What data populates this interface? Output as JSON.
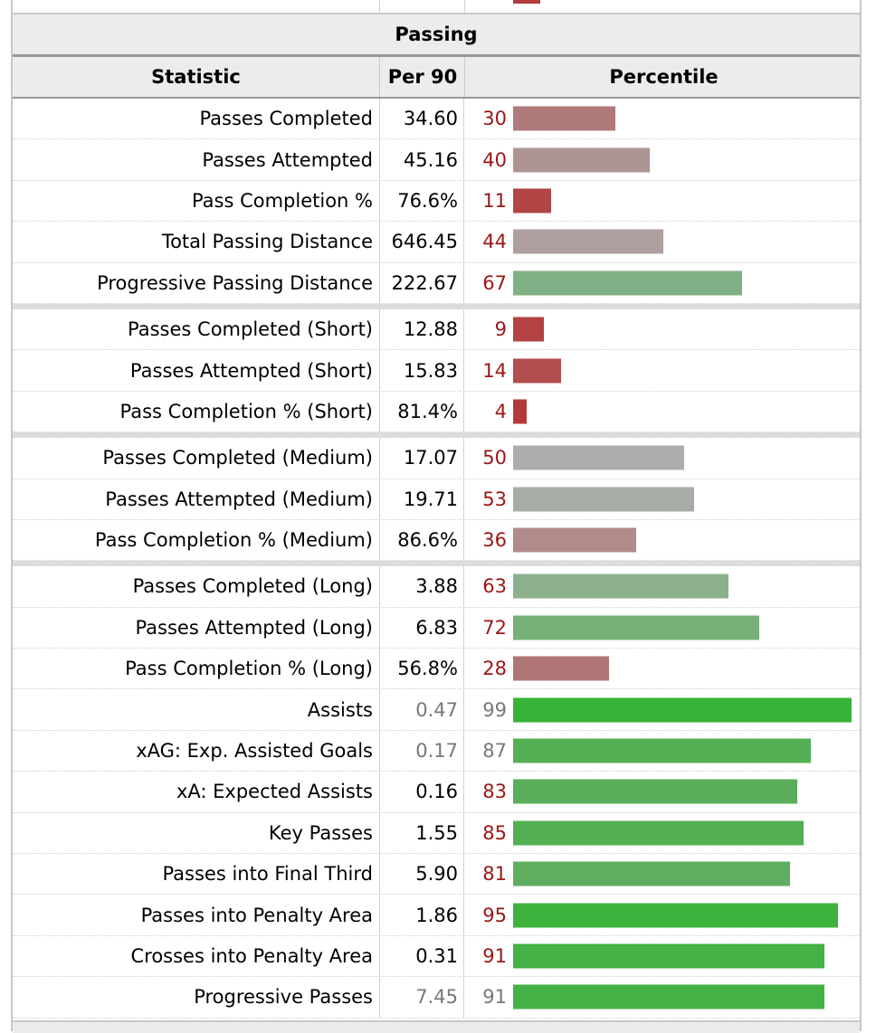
{
  "section_title": "Passing",
  "headers": {
    "statistic": "Statistic",
    "per90": "Per 90",
    "percentile": "Percentile"
  },
  "colors": {
    "low": "#b24444",
    "mid": "#b3a0a0",
    "neutral": "#aaaaaa",
    "high_muted": "#80b080",
    "high": "#3aaf3a"
  },
  "rows": [
    {
      "stat": "Passes Completed",
      "per90": "34.60",
      "percentile": 30,
      "color": "#b07a7a"
    },
    {
      "stat": "Passes Attempted",
      "per90": "45.16",
      "percentile": 40,
      "color": "#af9494"
    },
    {
      "stat": "Pass Completion %",
      "per90": "76.6%",
      "percentile": 11,
      "color": "#b24545"
    },
    {
      "stat": "Total Passing Distance",
      "per90": "646.45",
      "percentile": 44,
      "color": "#b09f9f"
    },
    {
      "stat": "Progressive Passing Distance",
      "per90": "222.67",
      "percentile": 67,
      "color": "#80b085"
    },
    {
      "stat": "Passes Completed (Short)",
      "per90": "12.88",
      "percentile": 9,
      "color": "#b34242",
      "sep": true
    },
    {
      "stat": "Passes Attempted (Short)",
      "per90": "15.83",
      "percentile": 14,
      "color": "#b24d4d"
    },
    {
      "stat": "Pass Completion % (Short)",
      "per90": "81.4%",
      "percentile": 4,
      "color": "#b33a3a"
    },
    {
      "stat": "Passes Completed (Medium)",
      "per90": "17.07",
      "percentile": 50,
      "color": "#adadad",
      "sep": true
    },
    {
      "stat": "Passes Attempted (Medium)",
      "per90": "19.71",
      "percentile": 53,
      "color": "#a7aca7"
    },
    {
      "stat": "Pass Completion % (Medium)",
      "per90": "86.6%",
      "percentile": 36,
      "color": "#b08b8b"
    },
    {
      "stat": "Passes Completed (Long)",
      "per90": "3.88",
      "percentile": 63,
      "color": "#8cb08c",
      "sep": true
    },
    {
      "stat": "Passes Attempted (Long)",
      "per90": "6.83",
      "percentile": 72,
      "color": "#76b076"
    },
    {
      "stat": "Pass Completion % (Long)",
      "per90": "56.8%",
      "percentile": 28,
      "color": "#b07575"
    },
    {
      "stat": "Assists",
      "per90": "0.47",
      "percentile": 99,
      "color": "#36b336",
      "muted": true
    },
    {
      "stat": "xAG: Exp. Assisted Goals",
      "per90": "0.17",
      "percentile": 87,
      "color": "#55b055",
      "muted": true
    },
    {
      "stat": "xA: Expected Assists",
      "per90": "0.16",
      "percentile": 83,
      "color": "#5aae5a"
    },
    {
      "stat": "Key Passes",
      "per90": "1.55",
      "percentile": 85,
      "color": "#52b052"
    },
    {
      "stat": "Passes into Final Third",
      "per90": "5.90",
      "percentile": 81,
      "color": "#5fae5f"
    },
    {
      "stat": "Passes into Penalty Area",
      "per90": "1.86",
      "percentile": 95,
      "color": "#3db23d"
    },
    {
      "stat": "Crosses into Penalty Area",
      "per90": "0.31",
      "percentile": 91,
      "color": "#44b144"
    },
    {
      "stat": "Progressive Passes",
      "per90": "7.45",
      "percentile": 91,
      "color": "#44b144",
      "muted": true
    }
  ]
}
